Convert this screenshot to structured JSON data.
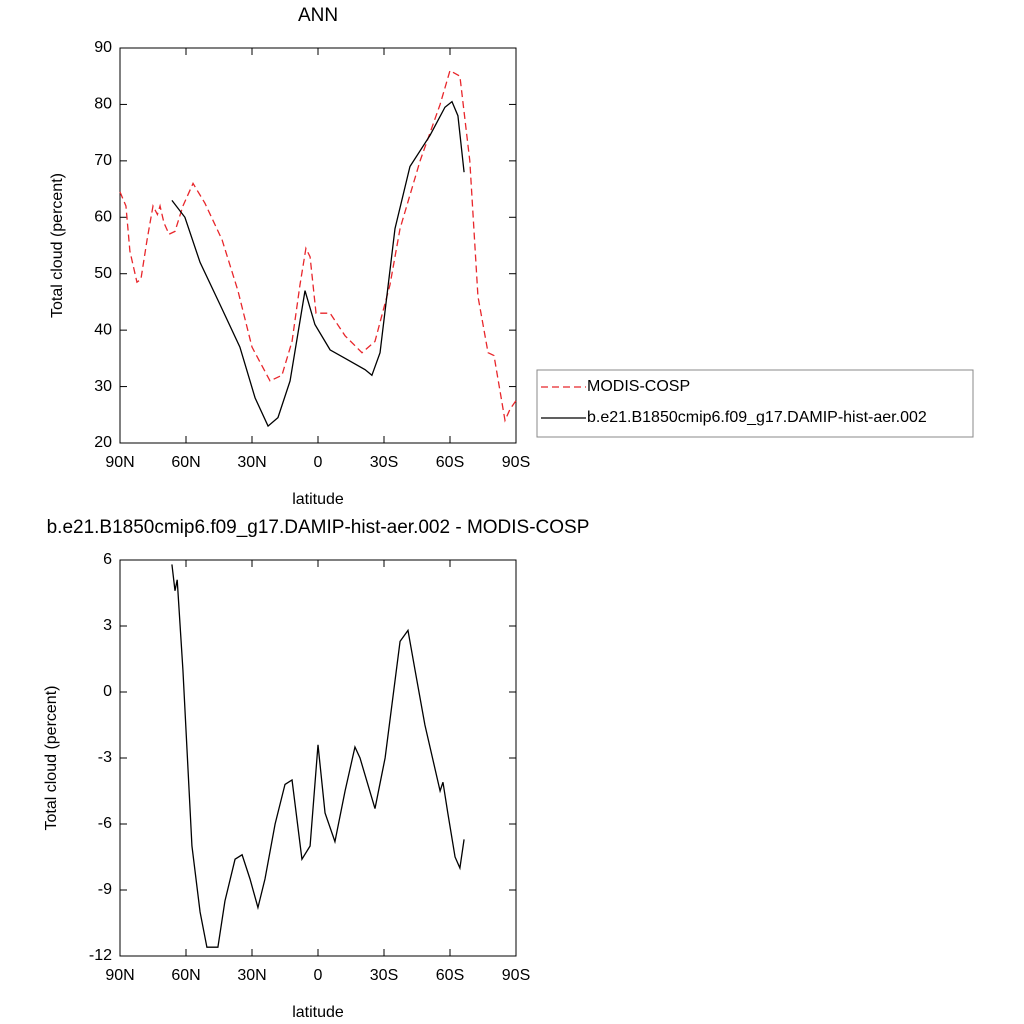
{
  "chart_data": [
    {
      "type": "line",
      "title": "ANN",
      "xlabel": "latitude",
      "ylabel": "Total cloud (percent)",
      "xlim": [
        90,
        -90
      ],
      "xticks": [
        {
          "value": 90,
          "label": "90N"
        },
        {
          "value": 60,
          "label": "60N"
        },
        {
          "value": 30,
          "label": "30N"
        },
        0,
        {
          "value": -30,
          "label": "30S"
        },
        {
          "value": -60,
          "label": "60S"
        },
        {
          "value": -90,
          "label": "90S"
        }
      ],
      "ylim": [
        20,
        90
      ],
      "yticks": [
        20,
        30,
        40,
        50,
        60,
        70,
        80,
        90
      ],
      "series": [
        {
          "name": "MODIS-COSP",
          "color": "#e8262b",
          "linestyle": "dashed",
          "x": [
            90,
            87.3,
            85.5,
            82.3,
            80.5,
            77.7,
            75,
            73,
            71.8,
            70,
            67.7,
            65,
            61.4,
            56.8,
            51.4,
            43.6,
            36.4,
            30,
            21.8,
            16.4,
            11.8,
            8.2,
            5.5,
            3.6,
            0.9,
            -5.5,
            -12.3,
            -20,
            -25.9,
            -32.7,
            -37.3,
            -46.4,
            -55.5,
            -60,
            -64.5,
            -69,
            -72.7,
            -77.3,
            -80,
            -85,
            -87.3,
            -90
          ],
          "values": [
            64.5,
            62,
            54,
            48.5,
            49,
            56,
            62,
            60.5,
            62,
            59,
            57,
            57.5,
            62,
            66,
            62.5,
            56,
            47,
            37,
            31,
            32,
            38,
            48,
            54.5,
            53,
            43,
            43,
            39,
            36,
            38,
            48,
            58,
            70,
            80,
            86,
            85,
            70,
            46,
            36,
            35.5,
            24,
            26,
            27.5
          ]
        },
        {
          "name": "b.e21.B1850cmip6.f09_g17.DAMIP-hist-aer.002",
          "color": "#000000",
          "linestyle": "solid",
          "x": [
            66.4,
            60.5,
            53.6,
            44.5,
            35.5,
            28.6,
            22.7,
            18.2,
            12.7,
            5.9,
            1.4,
            -5.5,
            -12.3,
            -21.4,
            -24.5,
            -28.2,
            -35,
            -41.8,
            -50.9,
            -57.7,
            -60.9,
            -63.6,
            -66.4
          ],
          "values": [
            63,
            60,
            52,
            44.5,
            37,
            28,
            23,
            24.5,
            31,
            47,
            41,
            36.5,
            35,
            33,
            32,
            36,
            58,
            69,
            74.5,
            79.5,
            80.5,
            78,
            68
          ]
        }
      ]
    },
    {
      "type": "line",
      "title": "b.e21.B1850cmip6.f09_g17.DAMIP-hist-aer.002 - MODIS-COSP",
      "xlabel": "latitude",
      "ylabel": "Total cloud (percent)",
      "xlim": [
        90,
        -90
      ],
      "xticks": [
        {
          "value": 90,
          "label": "90N"
        },
        {
          "value": 60,
          "label": "60N"
        },
        {
          "value": 30,
          "label": "30N"
        },
        0,
        {
          "value": -30,
          "label": "30S"
        },
        {
          "value": -60,
          "label": "60S"
        },
        {
          "value": -90,
          "label": "90S"
        }
      ],
      "ylim": [
        -12,
        6
      ],
      "yticks": [
        -12,
        -9,
        -6,
        -3,
        0,
        3,
        6
      ],
      "series": [
        {
          "color": "#000000",
          "linestyle": "solid",
          "x": [
            66.4,
            65,
            64,
            61.4,
            57.3,
            53.6,
            50.5,
            48.2,
            45.5,
            42.3,
            37.7,
            34.5,
            30.9,
            27.3,
            24.1,
            19.5,
            15,
            11.8,
            7.3,
            3.6,
            0,
            -3.2,
            -7.7,
            -12.3,
            -16.8,
            -19.1,
            -25.9,
            -30.5,
            -37.3,
            -40.9,
            -44.1,
            -48.6,
            -55.5,
            -56.8,
            -59,
            -62.3,
            -64.5,
            -66.4
          ],
          "values": [
            5.8,
            4.6,
            5.1,
            1,
            -7,
            -10,
            -11.6,
            -11.6,
            -11.6,
            -9.5,
            -7.6,
            -7.4,
            -8.5,
            -9.8,
            -8.5,
            -6,
            -4.2,
            -4,
            -7.6,
            -7,
            -2.4,
            -5.5,
            -6.8,
            -4.5,
            -2.5,
            -3,
            -5.3,
            -3,
            2.3,
            2.8,
            1,
            -1.5,
            -4.5,
            -4.1,
            -5.5,
            -7.5,
            -8,
            -6.7
          ]
        }
      ]
    }
  ]
}
